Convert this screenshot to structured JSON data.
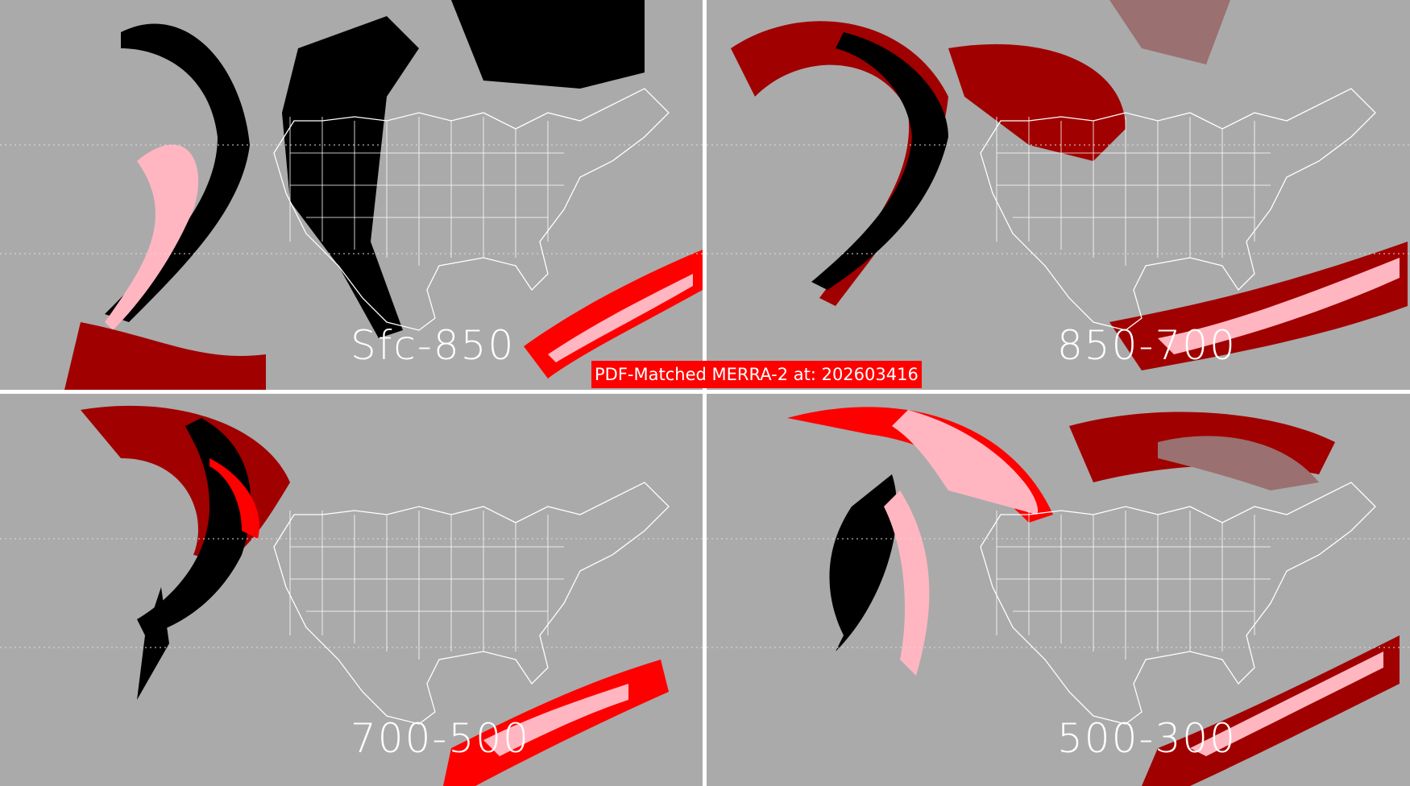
{
  "title": "PDF-Matched MERRA-2 at: 202603416",
  "panels": [
    {
      "label": "Sfc-850"
    },
    {
      "label": "850-700"
    },
    {
      "label": "700-500"
    },
    {
      "label": "500-300"
    }
  ],
  "colors": {
    "background": "#aaaaaa",
    "black": "#000000",
    "dark_red": "#a00000",
    "red": "#ff0000",
    "pink": "#ffb6c1",
    "mauve": "#9a7070",
    "boundaries": "#ffffff",
    "title_bg": "#ff0000"
  }
}
